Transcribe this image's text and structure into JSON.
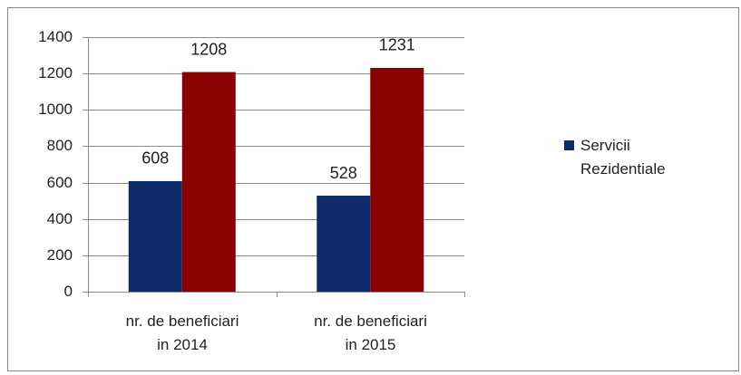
{
  "chart_data": {
    "type": "bar",
    "categories": [
      "nr. de beneficiari\nin 2014",
      "nr. de beneficiari\nin 2015"
    ],
    "series": [
      {
        "name": "Servicii Rezidentiale",
        "color": "#0e2a6b",
        "values": [
          608,
          528
        ]
      },
      {
        "color": "#8b0000",
        "values": [
          1208,
          1231
        ]
      }
    ],
    "ylim": [
      0,
      1400
    ],
    "yticks": [
      0,
      200,
      400,
      600,
      800,
      1000,
      1200,
      1400
    ],
    "grid": true,
    "legend": "right"
  }
}
